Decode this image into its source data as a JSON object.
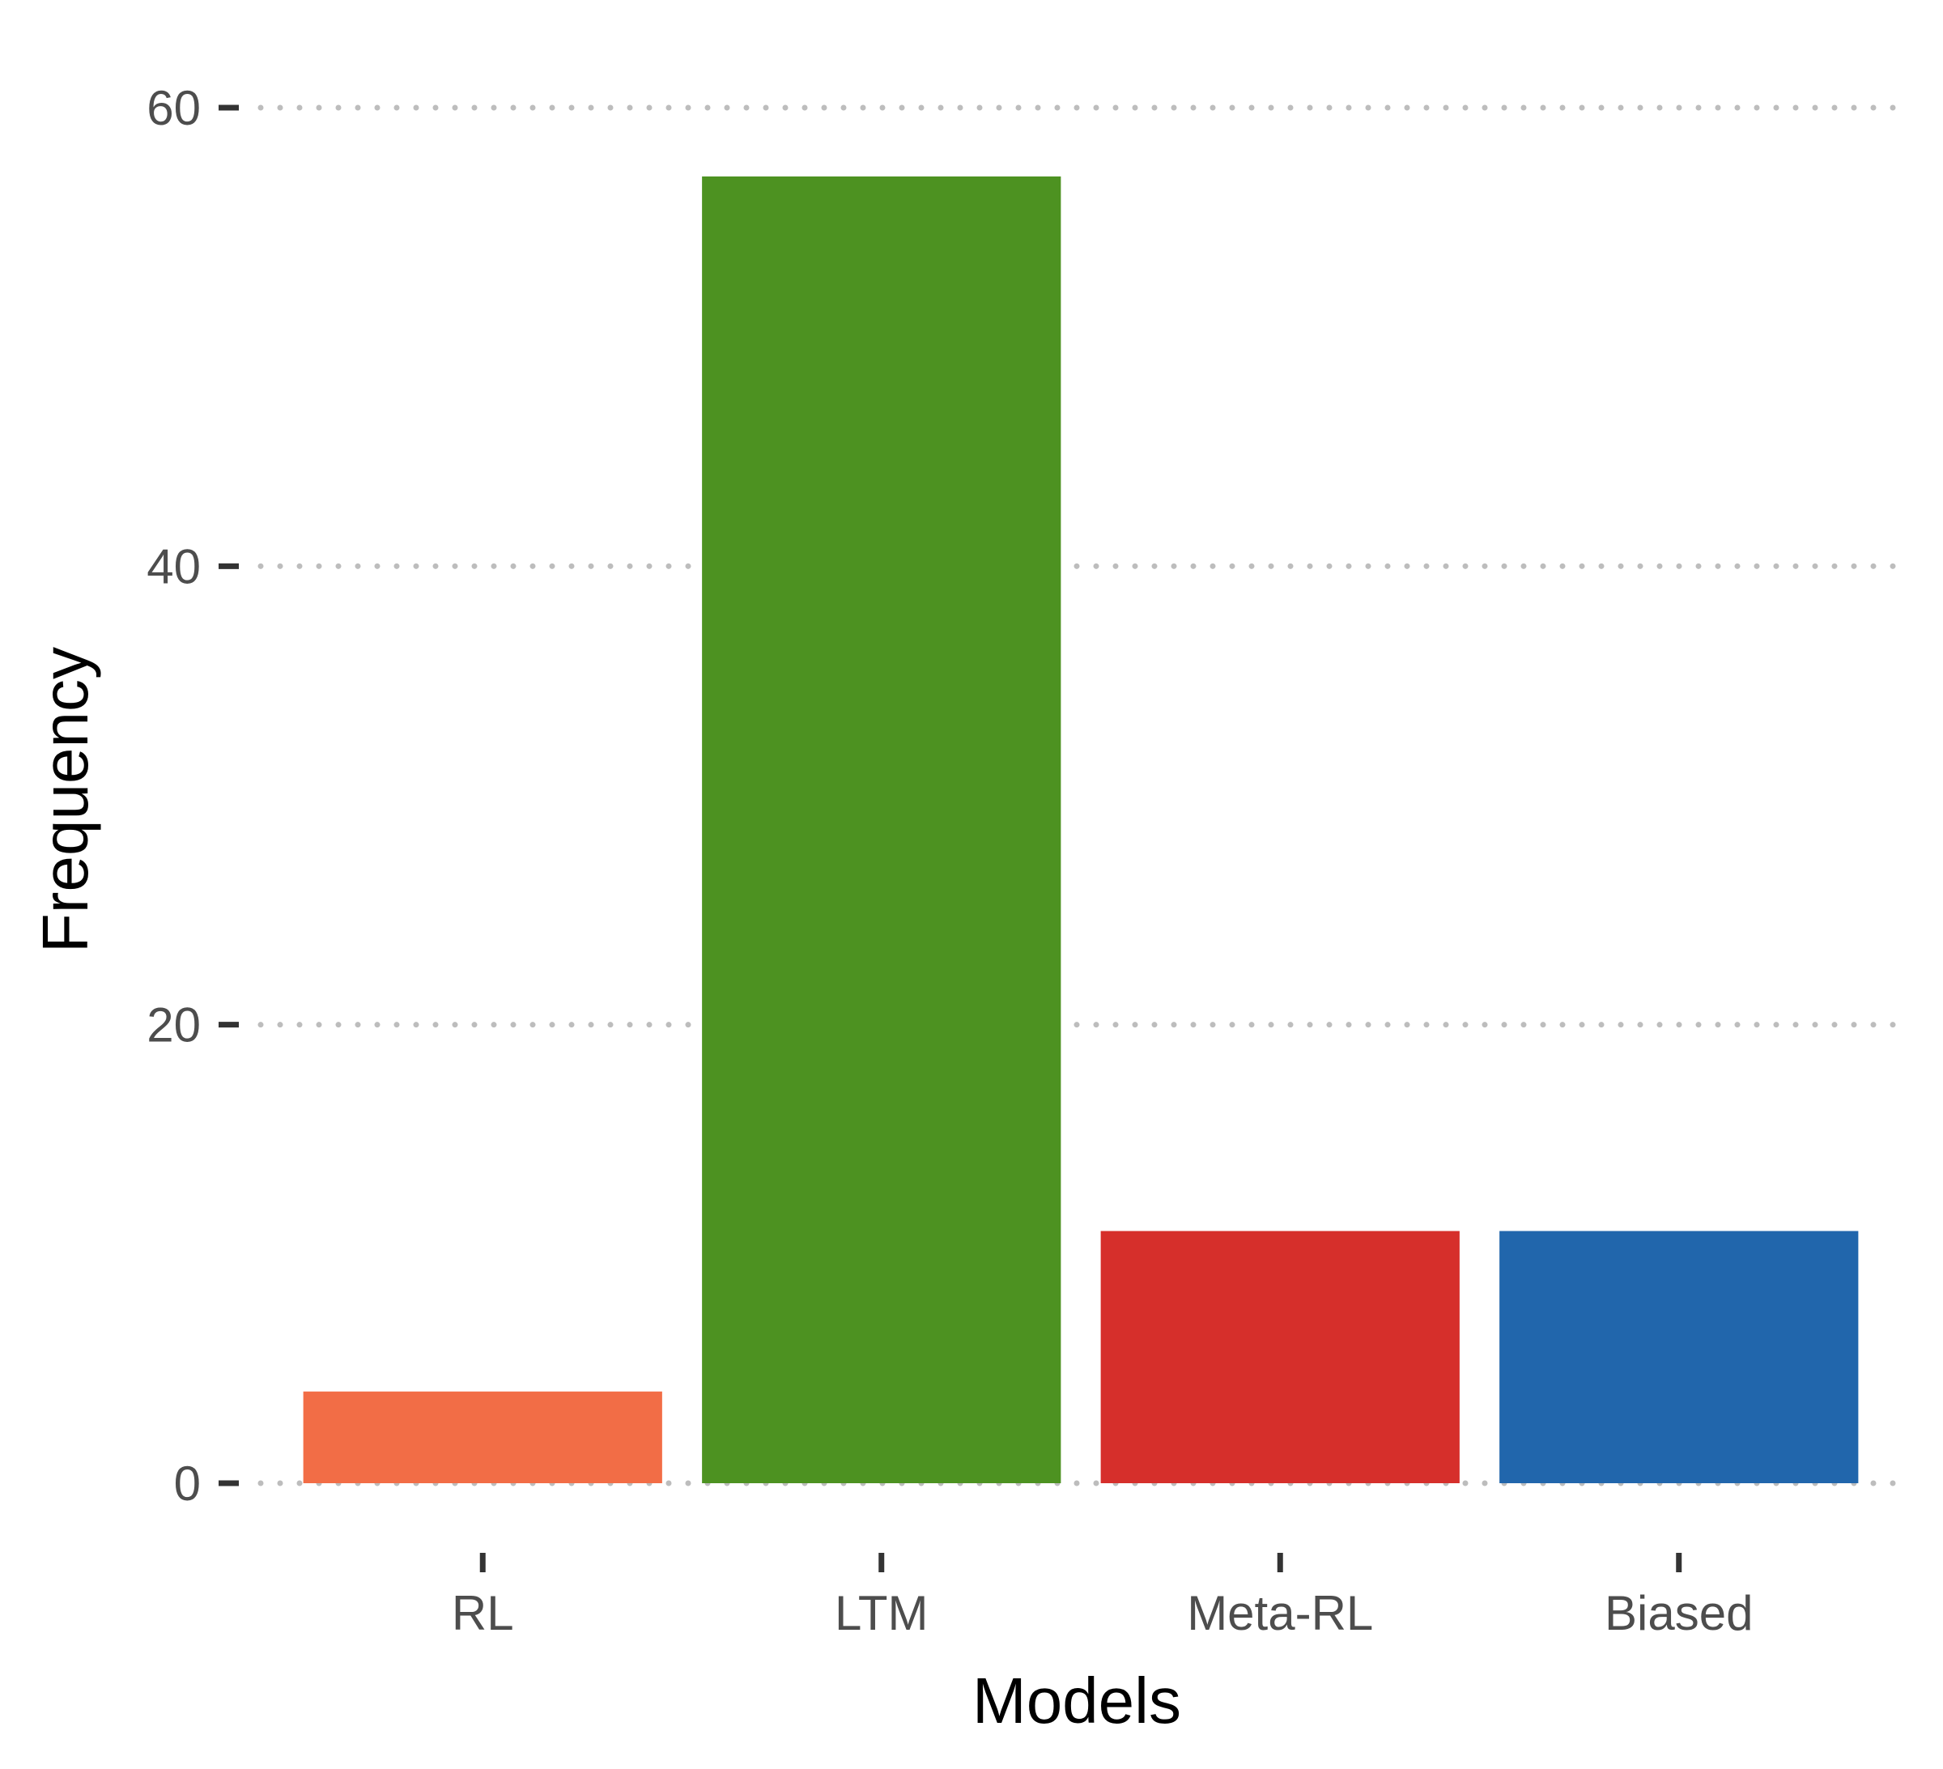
{
  "chart_data": {
    "type": "bar",
    "title": "",
    "xlabel": "Models",
    "ylabel": "Frequency",
    "categories": [
      "RL",
      "LTM",
      "Meta-RL",
      "Biased"
    ],
    "values": [
      4,
      57,
      11,
      11
    ],
    "colors": [
      "#f26d46",
      "#4d9221",
      "#d62f2b",
      "#2166ac"
    ],
    "ylim": [
      0,
      60
    ],
    "yticks": [
      0,
      20,
      40,
      60
    ],
    "ytick_labels": [
      "0",
      "20",
      "40",
      "60"
    ],
    "grid": "horizontal-dotted",
    "legend": "none"
  }
}
